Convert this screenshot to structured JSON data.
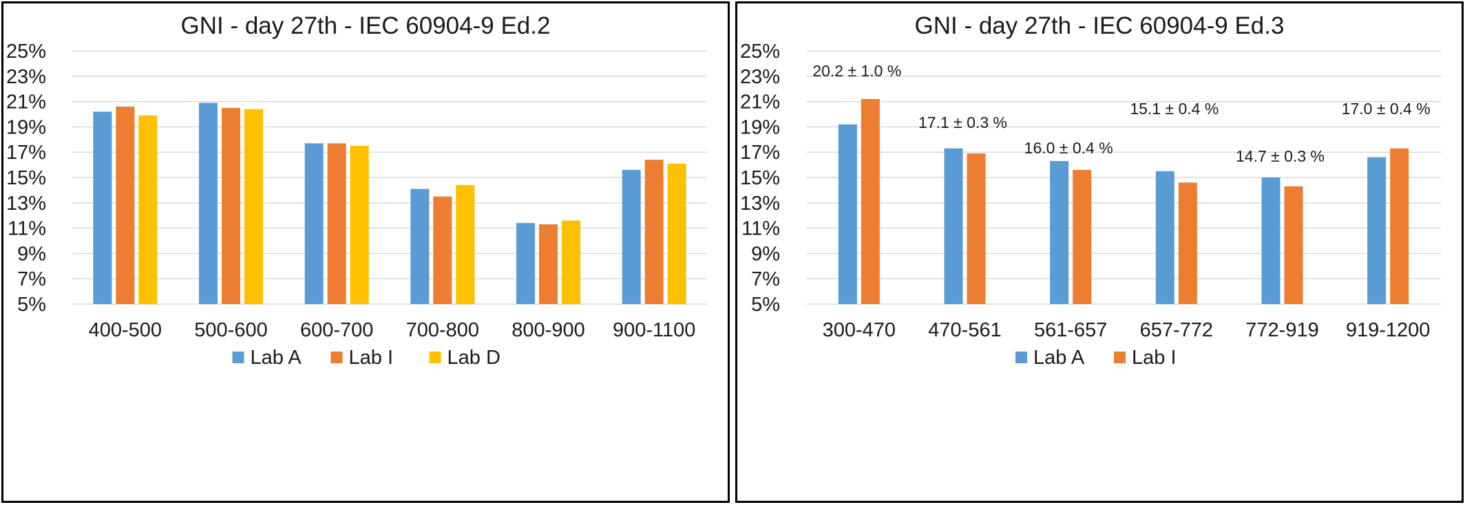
{
  "chart_data": [
    {
      "type": "bar",
      "title": "GNI - day 27th - IEC 60904-9 Ed.2",
      "categories": [
        "400-500",
        "500-600",
        "600-700",
        "700-800",
        "800-900",
        "900-1100"
      ],
      "series": [
        {
          "name": "Lab A",
          "color": "#5b9bd5",
          "values": [
            20.2,
            20.9,
            17.7,
            14.1,
            11.4,
            15.6
          ]
        },
        {
          "name": "Lab I",
          "color": "#ed7d31",
          "values": [
            20.6,
            20.5,
            17.7,
            13.5,
            11.3,
            16.4
          ]
        },
        {
          "name": "Lab D",
          "color": "#ffc000",
          "values": [
            19.9,
            20.4,
            17.5,
            14.4,
            11.6,
            16.1
          ]
        }
      ],
      "yticks": [
        "25%",
        "23%",
        "21%",
        "19%",
        "17%",
        "15%",
        "13%",
        "11%",
        "9%",
        "7%",
        "5%"
      ],
      "ylim": [
        5,
        25
      ],
      "ystep": 2,
      "grid": true,
      "legend_position": "bottom",
      "annotations": []
    },
    {
      "type": "bar",
      "title": "GNI - day 27th - IEC 60904-9 Ed.3",
      "categories": [
        "300-470",
        "470-561",
        "561-657",
        "657-772",
        "772-919",
        "919-1200"
      ],
      "series": [
        {
          "name": "Lab A",
          "color": "#5b9bd5",
          "values": [
            19.2,
            17.3,
            16.3,
            15.5,
            15.0,
            16.6
          ]
        },
        {
          "name": "Lab I",
          "color": "#ed7d31",
          "values": [
            21.2,
            16.9,
            15.6,
            14.6,
            14.3,
            17.3
          ]
        }
      ],
      "yticks": [
        "25%",
        "23%",
        "21%",
        "19%",
        "17%",
        "15%",
        "13%",
        "11%",
        "9%",
        "7%",
        "5%"
      ],
      "ylim": [
        5,
        25
      ],
      "ystep": 2,
      "grid": true,
      "legend_position": "bottom",
      "annotations": [
        "20.2 ± 1.0 %",
        "17.1 ± 0.3 %",
        "16.0 ± 0.4 %",
        "15.1 ± 0.4 %",
        "14.7 ± 0.3 %",
        "17.0 ± 0.4 %"
      ]
    }
  ]
}
